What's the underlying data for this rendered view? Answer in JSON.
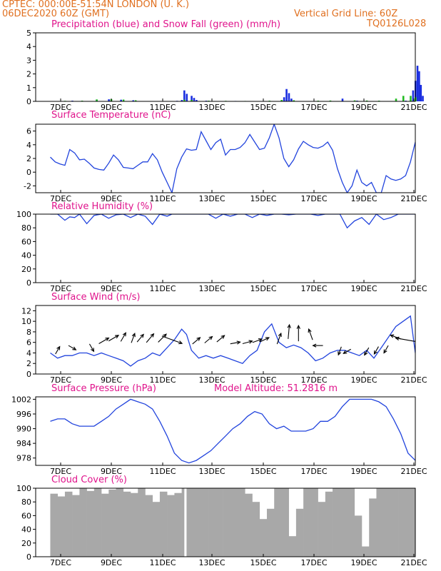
{
  "header": {
    "line1_left": "CPTEC:   000:00E-51:54N   LONDON (U. K.)",
    "line2_left": "06DEC2020 60Z (GMT)",
    "line1_right": "Vertical Grid Line: 60Z",
    "line2_right": "TQ0126L028"
  },
  "colors": {
    "header_text": "#e07020",
    "title_text": "#e0148c",
    "line": "#2244dd",
    "precip": "#1a2ee0",
    "snow": "#22bb22",
    "cloud": "#a8a8a8",
    "arrow": "#000000"
  },
  "chart_data": [
    {
      "id": "precip",
      "type": "bar",
      "title": "Precipitation (blue) and Snow Fall (green) (mm/h)",
      "ylim": [
        0,
        5
      ],
      "yticks": [
        0,
        1,
        2,
        3,
        4,
        5
      ],
      "xticks": [
        "7DEC",
        "9DEC",
        "11DEC",
        "13DEC",
        "15DEC",
        "17DEC",
        "19DEC",
        "21DEC"
      ],
      "series": [
        {
          "name": "Precipitation",
          "points": [
            [
              0.3,
              0.02
            ],
            [
              0.9,
              0.05
            ],
            [
              1.9,
              0.12
            ],
            [
              2.4,
              0.15
            ],
            [
              2.9,
              0.12
            ],
            [
              3.4,
              0.08
            ],
            [
              5.2,
              0.04
            ],
            [
              5.4,
              0.1
            ],
            [
              5.5,
              0.8
            ],
            [
              5.6,
              0.55
            ],
            [
              5.8,
              0.4
            ],
            [
              5.9,
              0.25
            ],
            [
              6.0,
              0.1
            ],
            [
              6.4,
              0.05
            ],
            [
              7.6,
              0.03
            ],
            [
              9.5,
              0.05
            ],
            [
              9.6,
              0.3
            ],
            [
              9.7,
              0.9
            ],
            [
              9.8,
              0.6
            ],
            [
              9.9,
              0.2
            ],
            [
              12.0,
              0.2
            ],
            [
              12.6,
              0.05
            ],
            [
              14.6,
              0.05
            ],
            [
              14.9,
              0.8
            ],
            [
              15.0,
              1.5
            ],
            [
              15.08,
              2.6
            ],
            [
              15.15,
              2.2
            ],
            [
              15.22,
              1.2
            ],
            [
              15.3,
              0.4
            ]
          ]
        },
        {
          "name": "Snow Fall",
          "points": [
            [
              0.6,
              0.04
            ],
            [
              1.3,
              0.05
            ],
            [
              1.9,
              0.14
            ],
            [
              2.5,
              0.16
            ],
            [
              3.0,
              0.13
            ],
            [
              3.5,
              0.08
            ],
            [
              5.5,
              0.12
            ],
            [
              5.8,
              0.1
            ],
            [
              6.5,
              0.05
            ],
            [
              7.2,
              0.04
            ],
            [
              8.0,
              0.03
            ],
            [
              9.0,
              0.05
            ],
            [
              9.5,
              0.1
            ],
            [
              10.0,
              0.08
            ],
            [
              11.0,
              0.05
            ],
            [
              11.5,
              0.06
            ],
            [
              12.5,
              0.07
            ],
            [
              13.0,
              0.06
            ],
            [
              13.5,
              0.05
            ],
            [
              14.2,
              0.2
            ],
            [
              14.5,
              0.4
            ],
            [
              14.8,
              0.4
            ],
            [
              15.0,
              0.3
            ]
          ]
        }
      ]
    },
    {
      "id": "temperature",
      "type": "line",
      "title": "Surface Temperature (nC)",
      "ylim": [
        -3,
        7
      ],
      "yticks": [
        -2,
        0,
        2,
        4,
        6
      ],
      "xticks": [
        "7DEC",
        "9DEC",
        "11DEC",
        "13DEC",
        "15DEC",
        "17DEC",
        "19DEC",
        "21DEC"
      ],
      "x": [
        0,
        0.2,
        0.4,
        0.6,
        0.8,
        1.0,
        1.2,
        1.4,
        1.6,
        1.8,
        2.0,
        2.2,
        2.4,
        2.6,
        2.8,
        3.0,
        3.2,
        3.4,
        3.6,
        3.8,
        4.0,
        4.2,
        4.4,
        4.6,
        4.8,
        5.0,
        5.2,
        5.4,
        5.6,
        5.8,
        6.0,
        6.2,
        6.4,
        6.6,
        6.8,
        7.0,
        7.2,
        7.4,
        7.6,
        7.8,
        8.0,
        8.2,
        8.4,
        8.6,
        8.8,
        9.0,
        9.2,
        9.4,
        9.6,
        9.8,
        10.0,
        10.2,
        10.4,
        10.6,
        10.8,
        11.0,
        11.2,
        11.4,
        11.6,
        11.8,
        12.0,
        12.2,
        12.4,
        12.6,
        12.8,
        13.0,
        13.2,
        13.4,
        13.6,
        13.8,
        14.0,
        14.2,
        14.4,
        14.6,
        14.8,
        15.0
      ],
      "values": [
        2.2,
        1.5,
        1.2,
        1.0,
        3.3,
        2.8,
        1.8,
        1.9,
        1.3,
        0.6,
        0.4,
        0.3,
        1.3,
        2.5,
        1.8,
        0.7,
        0.6,
        0.5,
        1.0,
        1.5,
        1.5,
        2.7,
        1.8,
        0.0,
        -1.5,
        -3.0,
        0.5,
        2.2,
        3.4,
        3.2,
        3.3,
        5.9,
        4.6,
        3.3,
        4.3,
        4.8,
        2.5,
        3.3,
        3.3,
        3.6,
        4.3,
        5.5,
        4.4,
        3.3,
        3.5,
        5.0,
        7.0,
        5.0,
        2.0,
        0.8,
        1.8,
        3.4,
        4.5,
        4.0,
        3.6,
        3.5,
        3.8,
        4.4,
        3.2,
        0.5,
        -1.5,
        -3.0,
        -2.0,
        0.3,
        -1.5,
        -2.0,
        -1.5,
        -3.0,
        -3.0,
        -0.5,
        -1.0,
        -1.2,
        -1.0,
        -0.5,
        1.5,
        4.4
      ]
    },
    {
      "id": "humidity",
      "type": "line",
      "title": "Relative Humidity (%)",
      "ylim": [
        0,
        100
      ],
      "yticks": [
        0,
        20,
        40,
        60,
        80,
        100
      ],
      "xticks": [
        "7DEC",
        "9DEC",
        "11DEC",
        "13DEC",
        "15DEC",
        "17DEC",
        "19DEC",
        "21DEC"
      ],
      "x": [
        0,
        0.3,
        0.6,
        0.8,
        1.0,
        1.2,
        1.5,
        1.8,
        2.1,
        2.4,
        2.7,
        3.0,
        3.3,
        3.6,
        3.9,
        4.2,
        4.5,
        4.8,
        5.0,
        5.3,
        5.6,
        5.9,
        6.2,
        6.5,
        6.8,
        7.1,
        7.4,
        7.7,
        8.0,
        8.3,
        8.6,
        8.9,
        9.2,
        9.5,
        9.8,
        10.1,
        10.4,
        10.7,
        11.0,
        11.3,
        11.6,
        11.9,
        12.2,
        12.5,
        12.8,
        13.1,
        13.4,
        13.7,
        14.0,
        14.3,
        14.6,
        15.0
      ],
      "values": [
        100,
        100,
        91,
        96,
        95,
        100,
        86,
        98,
        100,
        94,
        99,
        100,
        95,
        100,
        97,
        85,
        100,
        97,
        100,
        100,
        100,
        100,
        100,
        100,
        94,
        100,
        97,
        100,
        100,
        95,
        100,
        98,
        100,
        100,
        99,
        100,
        100,
        100,
        98,
        100,
        100,
        100,
        80,
        90,
        95,
        85,
        100,
        92,
        95,
        100,
        100,
        100
      ]
    },
    {
      "id": "wind",
      "type": "line",
      "title": "Surface Wind (m/s)",
      "ylim": [
        0,
        13
      ],
      "yticks": [
        0,
        2,
        4,
        6,
        8,
        10,
        12
      ],
      "xticks": [
        "7DEC",
        "9DEC",
        "11DEC",
        "13DEC",
        "15DEC",
        "17DEC",
        "19DEC",
        "21DEC"
      ],
      "x": [
        0,
        0.3,
        0.6,
        0.9,
        1.2,
        1.5,
        1.8,
        2.1,
        2.4,
        2.7,
        3.0,
        3.3,
        3.6,
        3.9,
        4.2,
        4.5,
        4.8,
        5.1,
        5.4,
        5.6,
        5.8,
        6.1,
        6.4,
        6.7,
        7.0,
        7.3,
        7.6,
        7.9,
        8.2,
        8.5,
        8.8,
        9.1,
        9.4,
        9.7,
        10.0,
        10.3,
        10.6,
        10.9,
        11.2,
        11.5,
        11.8,
        12.1,
        12.4,
        12.7,
        13.0,
        13.3,
        13.6,
        13.9,
        14.2,
        14.5,
        14.8,
        15.0
      ],
      "values": [
        4,
        3,
        3.5,
        3.5,
        4,
        4,
        3.5,
        4,
        3.5,
        3,
        2.5,
        1.5,
        2.5,
        3,
        4,
        3.5,
        5,
        6.5,
        8.5,
        7.5,
        4.5,
        3,
        3.5,
        3,
        3.5,
        3,
        2.5,
        2,
        3.5,
        4.5,
        8,
        9.5,
        6,
        5,
        5.5,
        5,
        4,
        2.5,
        3,
        4,
        4.5,
        4.5,
        4,
        3.5,
        4.5,
        3,
        5,
        7,
        9,
        10,
        11,
        4
      ]
    },
    {
      "id": "pressure",
      "type": "line",
      "title": "Surface Pressure (hPa)",
      "annotation": "Model Altitude: 51.2816 m",
      "ylim": [
        975,
        1003
      ],
      "yticks": [
        978,
        984,
        990,
        996,
        1002
      ],
      "xticks": [
        "7DEC",
        "9DEC",
        "11DEC",
        "13DEC",
        "15DEC",
        "17DEC",
        "19DEC",
        "21DEC"
      ],
      "x": [
        0,
        0.3,
        0.6,
        0.9,
        1.2,
        1.5,
        1.8,
        2.1,
        2.4,
        2.7,
        3.0,
        3.3,
        3.6,
        3.9,
        4.2,
        4.5,
        4.8,
        5.1,
        5.4,
        5.7,
        6.0,
        6.3,
        6.6,
        6.9,
        7.2,
        7.5,
        7.8,
        8.1,
        8.4,
        8.7,
        9.0,
        9.3,
        9.6,
        9.9,
        10.2,
        10.5,
        10.8,
        11.1,
        11.4,
        11.7,
        12.0,
        12.3,
        12.6,
        12.9,
        13.2,
        13.5,
        13.8,
        14.1,
        14.4,
        14.7,
        15.0
      ],
      "values": [
        993,
        994,
        994,
        992,
        991,
        991,
        991,
        993,
        995,
        998,
        1000,
        1002,
        1001,
        1000,
        998,
        993,
        987,
        980,
        977,
        976,
        977,
        979,
        981,
        984,
        987,
        990,
        992,
        995,
        997,
        996,
        992,
        990,
        991,
        989,
        989,
        989,
        990,
        993,
        993,
        995,
        999,
        1002,
        1002,
        1002,
        1002,
        1001,
        999,
        994,
        988,
        980,
        977
      ]
    },
    {
      "id": "cloud",
      "type": "area",
      "title": "Cloud Cover (%)",
      "ylim": [
        0,
        100
      ],
      "yticks": [
        0,
        20,
        40,
        60,
        80,
        100
      ],
      "xticks": [
        "7DEC",
        "9DEC",
        "11DEC",
        "13DEC",
        "15DEC",
        "17DEC",
        "19DEC",
        "21DEC"
      ],
      "x": [
        0,
        0.3,
        0.6,
        0.9,
        1.2,
        1.5,
        1.8,
        2.1,
        2.4,
        2.7,
        3.0,
        3.3,
        3.6,
        3.9,
        4.2,
        4.5,
        4.8,
        5.1,
        5.4,
        5.5,
        5.6,
        5.9,
        6.2,
        6.5,
        6.8,
        7.1,
        7.4,
        7.7,
        8.0,
        8.3,
        8.6,
        8.9,
        9.2,
        9.5,
        9.8,
        10.1,
        10.4,
        10.7,
        11.0,
        11.3,
        11.6,
        11.9,
        12.2,
        12.5,
        12.8,
        13.1,
        13.4,
        13.7,
        14.0,
        14.3,
        14.6,
        15.0
      ],
      "values": [
        92,
        88,
        95,
        90,
        100,
        96,
        100,
        92,
        98,
        100,
        95,
        93,
        100,
        90,
        80,
        95,
        90,
        93,
        100,
        0,
        100,
        100,
        100,
        100,
        100,
        100,
        100,
        100,
        92,
        80,
        55,
        70,
        100,
        100,
        30,
        70,
        100,
        100,
        80,
        95,
        100,
        100,
        100,
        60,
        15,
        85,
        100,
        100,
        100,
        100,
        100,
        100
      ]
    }
  ],
  "wind_arrows": [
    {
      "x": 0.3,
      "y": 4.5,
      "dir": 210,
      "len": 0.4
    },
    {
      "x": 0.9,
      "y": 5.0,
      "dir": 300,
      "len": 0.4
    },
    {
      "x": 1.7,
      "y": 5.0,
      "dir": 330,
      "len": 0.4
    },
    {
      "x": 2.2,
      "y": 6.3,
      "dir": 240,
      "len": 0.6
    },
    {
      "x": 2.6,
      "y": 6.8,
      "dir": 240,
      "len": 0.6
    },
    {
      "x": 3.0,
      "y": 7.0,
      "dir": 210,
      "len": 0.5
    },
    {
      "x": 3.4,
      "y": 6.8,
      "dir": 200,
      "len": 0.5
    },
    {
      "x": 3.7,
      "y": 6.8,
      "dir": 220,
      "len": 0.5
    },
    {
      "x": 4.1,
      "y": 6.8,
      "dir": 220,
      "len": 0.6
    },
    {
      "x": 4.6,
      "y": 6.8,
      "dir": 225,
      "len": 0.6
    },
    {
      "x": 5.0,
      "y": 6.5,
      "dir": 290,
      "len": 1.3
    },
    {
      "x": 6.0,
      "y": 6.3,
      "dir": 230,
      "len": 0.5
    },
    {
      "x": 6.5,
      "y": 6.5,
      "dir": 230,
      "len": 0.5
    },
    {
      "x": 7.0,
      "y": 6.7,
      "dir": 230,
      "len": 0.5
    },
    {
      "x": 7.6,
      "y": 5.9,
      "dir": 260,
      "len": 0.5
    },
    {
      "x": 8.1,
      "y": 6.0,
      "dir": 255,
      "len": 0.5
    },
    {
      "x": 8.5,
      "y": 6.3,
      "dir": 250,
      "len": 0.5
    },
    {
      "x": 8.8,
      "y": 6.5,
      "dir": 245,
      "len": 0.5
    },
    {
      "x": 9.4,
      "y": 6.7,
      "dir": 200,
      "len": 0.6
    },
    {
      "x": 9.8,
      "y": 8.0,
      "dir": 185,
      "len": 0.8
    },
    {
      "x": 10.2,
      "y": 7.7,
      "dir": 180,
      "len": 0.9
    },
    {
      "x": 10.7,
      "y": 7.5,
      "dir": 160,
      "len": 0.6
    },
    {
      "x": 11.0,
      "y": 5.4,
      "dir": 90,
      "len": 0.5
    },
    {
      "x": 11.9,
      "y": 4.4,
      "dir": 20,
      "len": 0.4
    },
    {
      "x": 12.2,
      "y": 4.3,
      "dir": 60,
      "len": 0.4
    },
    {
      "x": 13.0,
      "y": 4.3,
      "dir": 30,
      "len": 0.4
    },
    {
      "x": 13.4,
      "y": 4.5,
      "dir": 30,
      "len": 0.4
    },
    {
      "x": 13.8,
      "y": 4.7,
      "dir": 30,
      "len": 0.4
    },
    {
      "x": 14.2,
      "y": 7.0,
      "dir": 110,
      "len": 0.6
    },
    {
      "x": 14.6,
      "y": 6.5,
      "dir": 100,
      "len": 1.2
    }
  ]
}
